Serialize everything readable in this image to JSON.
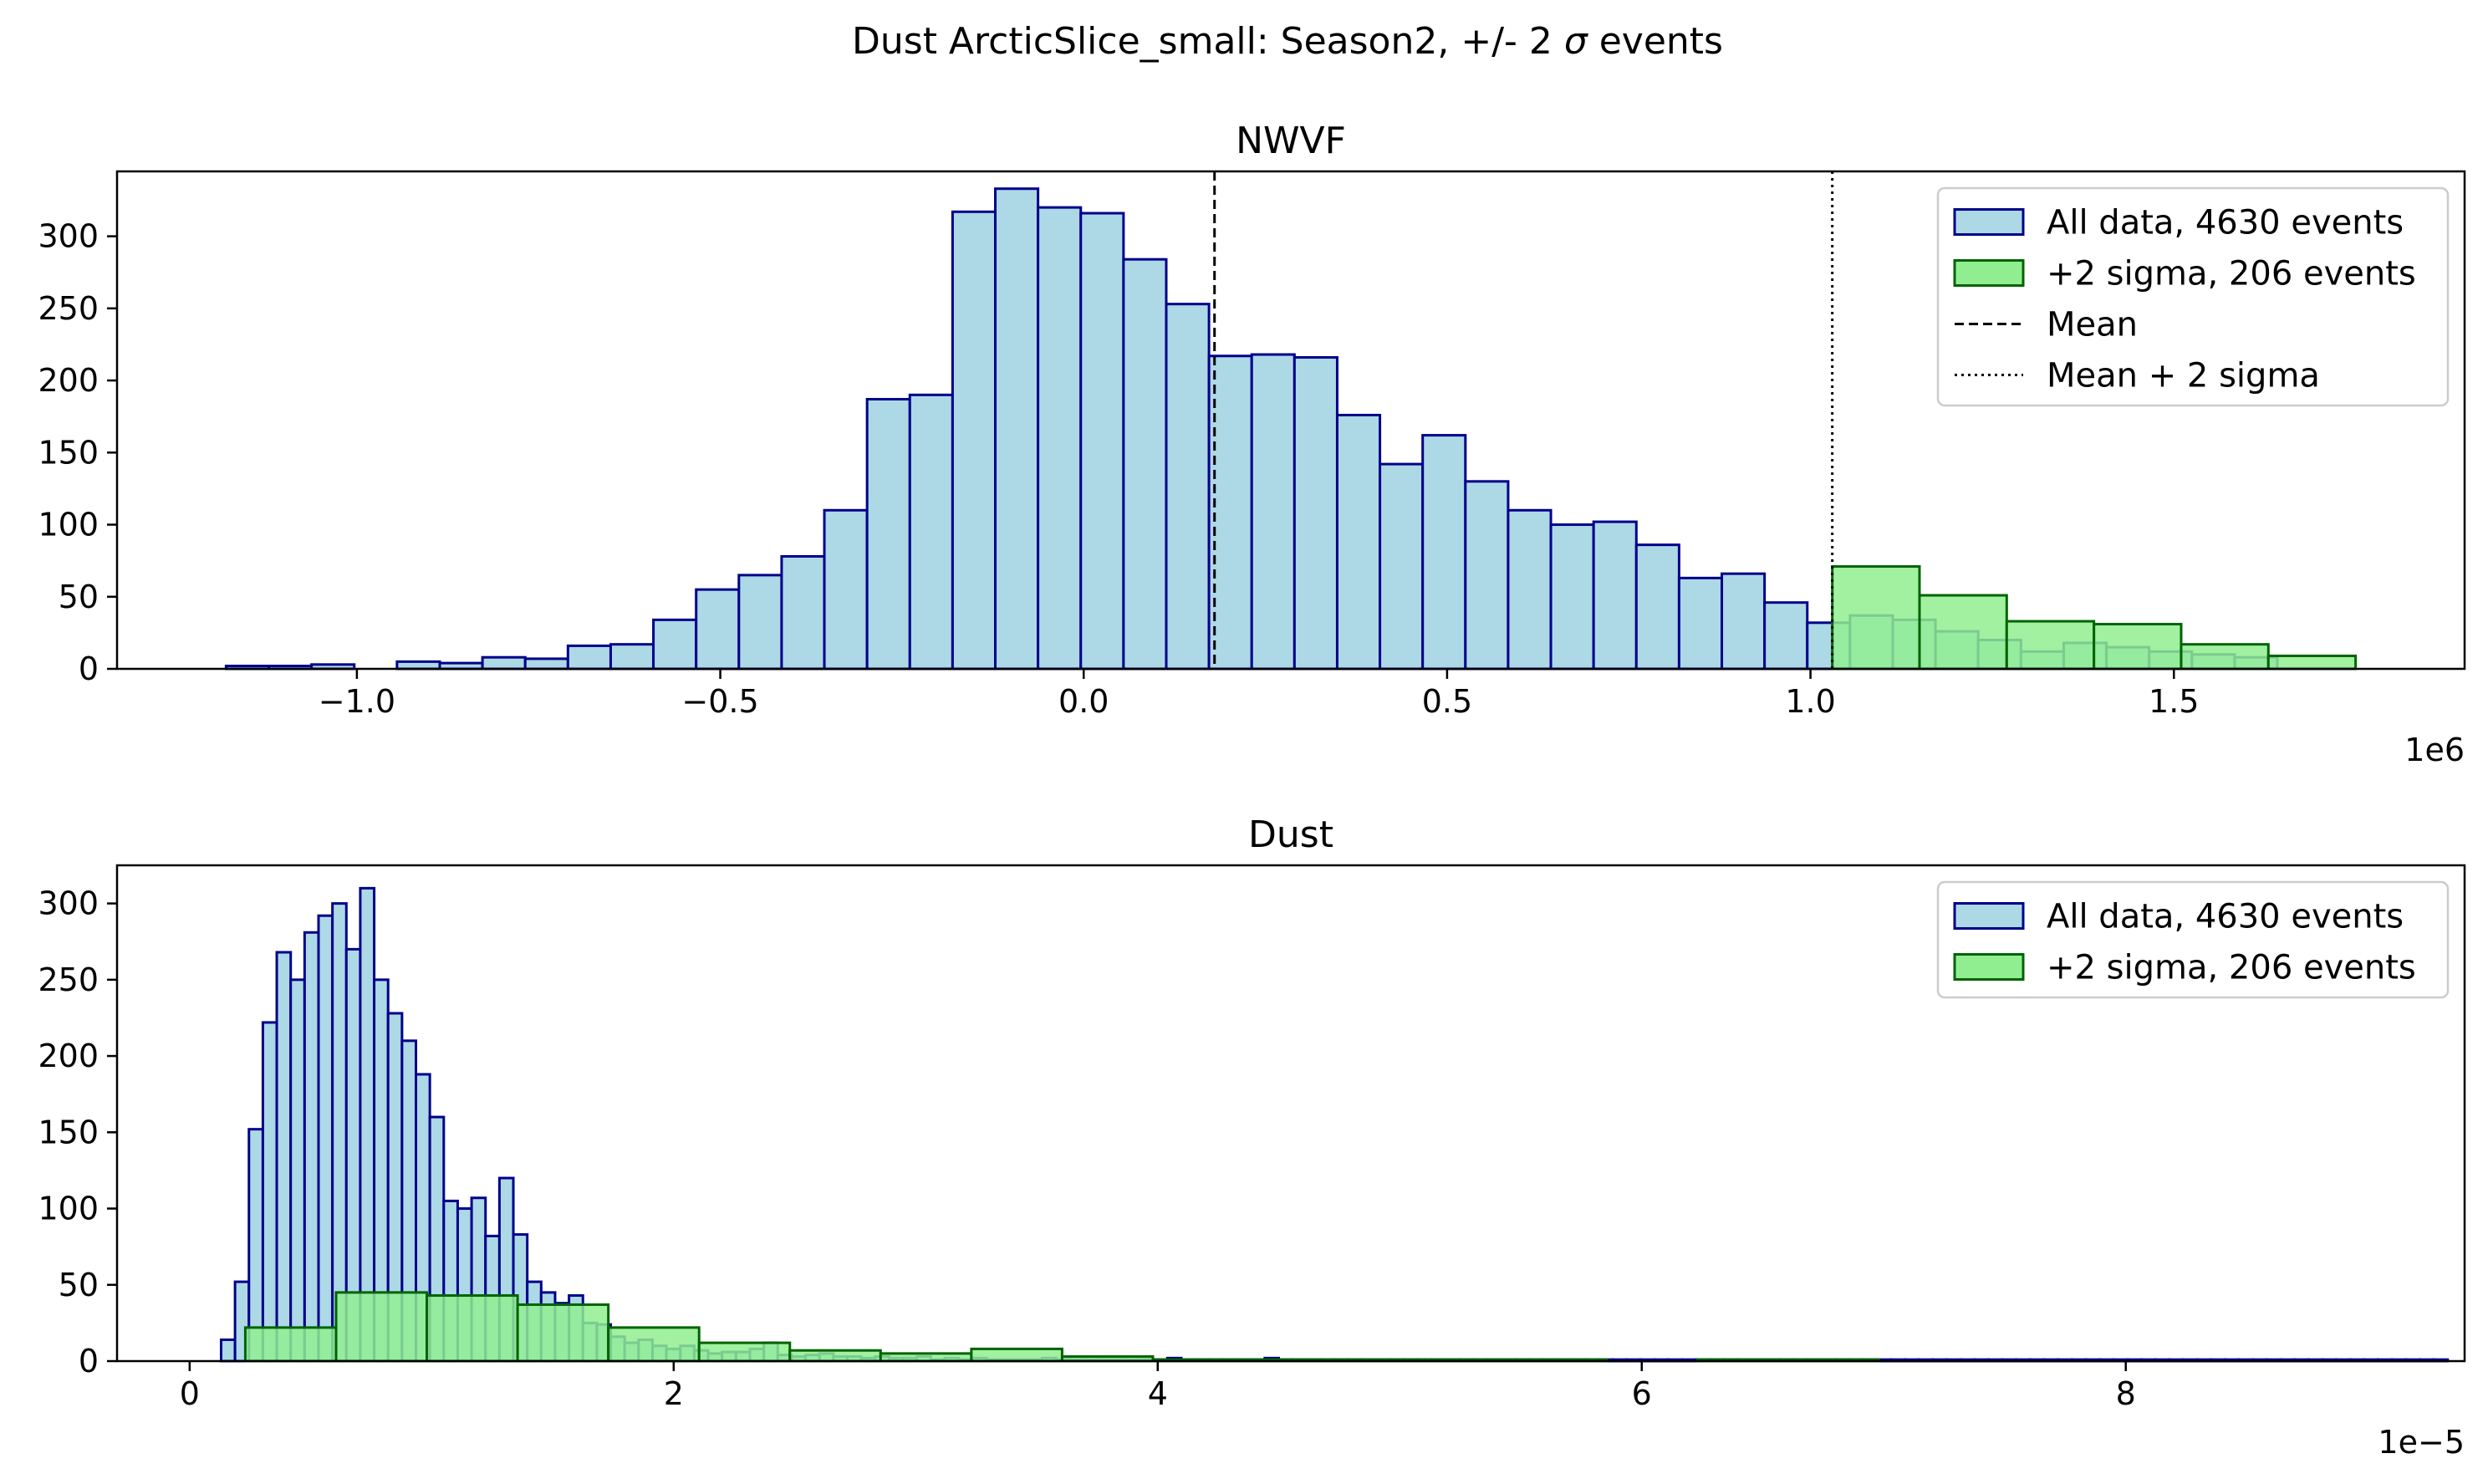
{
  "suptitle_pre": "Dust ArcticSlice_small: Season2, +/- 2 ",
  "suptitle_sym": "σ",
  "suptitle_post": " events",
  "colors": {
    "all_fill": "#add8e6",
    "all_edge": "#00008b",
    "sig_fill": "#90ee90",
    "sig_edge": "#006400"
  },
  "chart_data": [
    {
      "type": "bar",
      "title": "NWVF",
      "xlim": [
        -1.33,
        1.9
      ],
      "ylim": [
        0,
        345
      ],
      "xticks": [
        -1.0,
        -0.5,
        0.0,
        0.5,
        1.0,
        1.5
      ],
      "xtick_labels": [
        "−1.0",
        "−0.5",
        "0.0",
        "0.5",
        "1.0",
        "1.5"
      ],
      "yticks": [
        0,
        50,
        100,
        150,
        200,
        250,
        300
      ],
      "x_offset_label": "1e6",
      "mean": 0.18,
      "mean_plus_2sigma": 1.03,
      "legend": [
        "All data, 4630 events",
        "+2 sigma, 206 events",
        "Mean",
        "Mean + 2 sigma"
      ],
      "series": [
        {
          "name": "All data, 4630 events",
          "bin_start": -1.18,
          "bin_width": 0.0588,
          "values": [
            2,
            2,
            3,
            0,
            5,
            4,
            8,
            7,
            16,
            17,
            34,
            55,
            65,
            78,
            110,
            187,
            190,
            317,
            333,
            320,
            316,
            284,
            253,
            217,
            218,
            216,
            176,
            142,
            162,
            130,
            110,
            100,
            102,
            86,
            63,
            66,
            46,
            32,
            37,
            34,
            26,
            20,
            12,
            18,
            15,
            12,
            10,
            8
          ]
        },
        {
          "name": "+2 sigma, 206 events",
          "bin_start": 1.03,
          "bin_width": 0.12,
          "values": [
            71,
            51,
            33,
            31,
            17,
            9
          ]
        }
      ]
    },
    {
      "type": "bar",
      "title": "Dust",
      "xlim": [
        -0.3,
        9.4
      ],
      "ylim": [
        0,
        325
      ],
      "xticks": [
        0,
        2,
        4,
        6,
        8
      ],
      "xtick_labels": [
        "0",
        "2",
        "4",
        "6",
        "8"
      ],
      "yticks": [
        0,
        50,
        100,
        150,
        200,
        250,
        300
      ],
      "x_offset_label": "1e−5",
      "legend": [
        "All data, 4630 events",
        "+2 sigma, 206 events"
      ],
      "series": [
        {
          "name": "All data, 4630 events",
          "bin_start": 0.13,
          "bin_width": 0.0575,
          "values": [
            14,
            52,
            152,
            222,
            268,
            250,
            281,
            292,
            300,
            270,
            310,
            250,
            228,
            210,
            188,
            160,
            105,
            100,
            107,
            82,
            120,
            83,
            52,
            45,
            38,
            43,
            25,
            24,
            16,
            12,
            14,
            10,
            8,
            10,
            7,
            5,
            6,
            6,
            8,
            12,
            4,
            3,
            4,
            5,
            3,
            3,
            2,
            3,
            2,
            2,
            3,
            1,
            2,
            1,
            2,
            1,
            1,
            1,
            1,
            2,
            1,
            1,
            1,
            1,
            1,
            1,
            1,
            1,
            2,
            1,
            1,
            1,
            1,
            1,
            1,
            2,
            1,
            1,
            1,
            1,
            1,
            1,
            1,
            1,
            1,
            1,
            1,
            1,
            1,
            1,
            1,
            1,
            1,
            1,
            1,
            1,
            1,
            1,
            1,
            1,
            1,
            1,
            1,
            1,
            1,
            1,
            1,
            1,
            1,
            1,
            1,
            1,
            1,
            1,
            1,
            1,
            1,
            1,
            1,
            1,
            1,
            1,
            1,
            1,
            1,
            1,
            1,
            1,
            1,
            1,
            1,
            1,
            1,
            1,
            1,
            1,
            1,
            1,
            1,
            1,
            1,
            1,
            1,
            1,
            1,
            1,
            1,
            1,
            1,
            1,
            1,
            1,
            1,
            1,
            1,
            1,
            1,
            1,
            1,
            1
          ]
        },
        {
          "name": "+2 sigma, 206 events",
          "bin_start": 0.23,
          "bin_width": 0.375,
          "values": [
            22,
            45,
            43,
            37,
            22,
            12,
            7,
            5,
            8,
            3,
            1,
            1,
            1,
            1,
            1,
            0,
            1,
            1,
            0,
            0,
            0,
            0,
            0,
            0
          ]
        }
      ]
    }
  ]
}
